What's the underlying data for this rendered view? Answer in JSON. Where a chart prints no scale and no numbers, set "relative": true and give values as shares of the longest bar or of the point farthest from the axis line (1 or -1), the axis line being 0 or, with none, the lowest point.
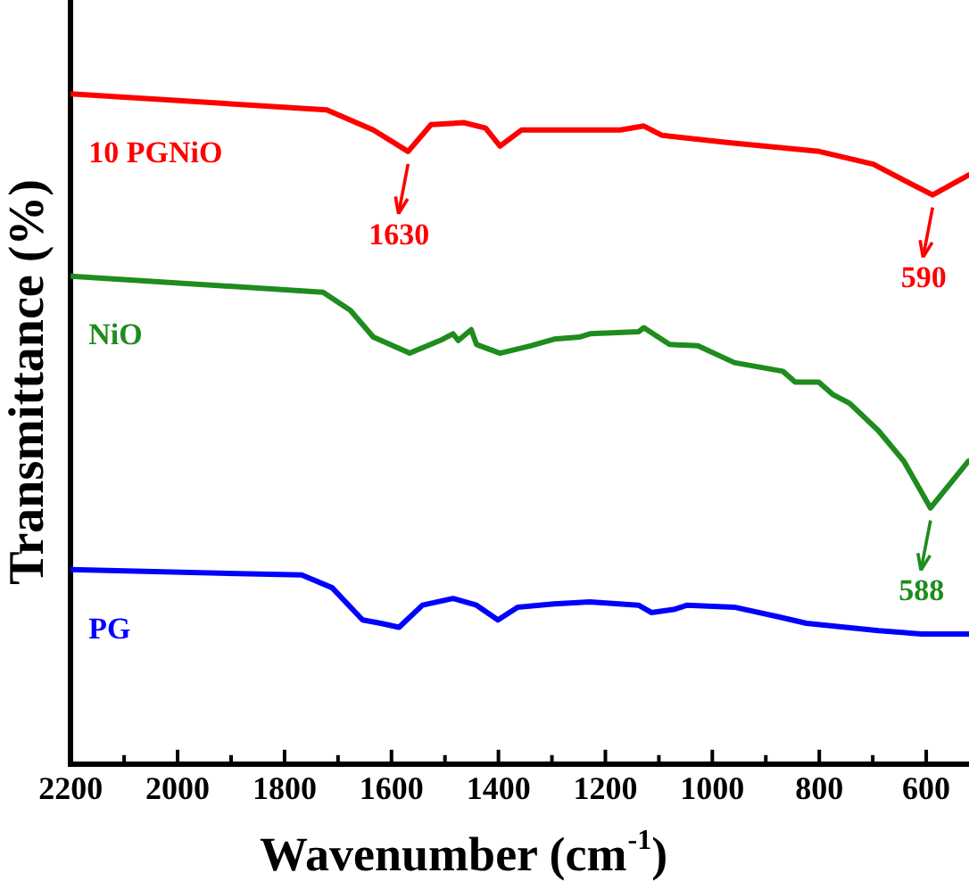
{
  "chart_data": {
    "type": "line",
    "relative": true,
    "xlabel": "Wavenumber (cm$^{-1}$)",
    "ylabel": "Transmittance (%)",
    "xlim": [
      2200,
      520
    ],
    "xticks": [
      2200,
      {
        "value": 2100,
        "label": null
      },
      2000,
      {
        "value": 1900,
        "label": null
      },
      1800,
      {
        "value": 1700,
        "label": null
      },
      1600,
      {
        "value": 1500,
        "label": null
      },
      1400,
      {
        "value": 1300,
        "label": null
      },
      1200,
      {
        "value": 1100,
        "label": null
      },
      1000,
      {
        "value": 900,
        "label": null
      },
      800,
      {
        "value": 700,
        "label": null
      },
      600
    ],
    "grid": false,
    "legend": false,
    "marker": "none",
    "line_style": "solid",
    "series": [
      {
        "name": "10 PGNiO",
        "color": "#ff0000",
        "x": [
          2200,
          1721,
          1634,
          1569,
          1526,
          1465,
          1424,
          1397,
          1357,
          1172,
          1128,
          1094,
          969,
          800,
          699,
          588,
          520
        ],
        "values": [
          1.0,
          0.976,
          0.946,
          0.914,
          0.954,
          0.957,
          0.949,
          0.922,
          0.946,
          0.946,
          0.952,
          0.938,
          0.927,
          0.914,
          0.895,
          0.849,
          0.879
        ]
      },
      {
        "name": "NiO",
        "color": "#1e8c1e",
        "x": [
          2200,
          1728,
          1677,
          1634,
          1566,
          1509,
          1485,
          1475,
          1451,
          1441,
          1397,
          1340,
          1296,
          1249,
          1229,
          1138,
          1128,
          1080,
          1027,
          959,
          868,
          845,
          801,
          774,
          743,
          689,
          642,
          592,
          521
        ],
        "values": [
          0.728,
          0.704,
          0.677,
          0.637,
          0.613,
          0.632,
          0.642,
          0.632,
          0.648,
          0.626,
          0.613,
          0.624,
          0.634,
          0.637,
          0.642,
          0.645,
          0.651,
          0.626,
          0.624,
          0.599,
          0.586,
          0.57,
          0.57,
          0.551,
          0.538,
          0.497,
          0.452,
          0.382,
          0.452
        ]
      },
      {
        "name": "PG",
        "color": "#0000ff",
        "x": [
          2200,
          1768,
          1711,
          1654,
          1620,
          1586,
          1542,
          1485,
          1441,
          1401,
          1364,
          1296,
          1229,
          1138,
          1114,
          1070,
          1047,
          959,
          878,
          824,
          689,
          608,
          521
        ],
        "values": [
          0.29,
          0.282,
          0.263,
          0.215,
          0.21,
          0.204,
          0.237,
          0.247,
          0.237,
          0.215,
          0.234,
          0.239,
          0.242,
          0.237,
          0.226,
          0.231,
          0.237,
          0.234,
          0.22,
          0.21,
          0.199,
          0.194,
          0.194
        ]
      }
    ],
    "annotations": [
      {
        "text": "1630",
        "x": 1569,
        "y": 0.914
      },
      {
        "text": "590",
        "x": 588,
        "y": 0.849
      },
      {
        "text": "588",
        "x": 592,
        "y": 0.382
      }
    ]
  }
}
